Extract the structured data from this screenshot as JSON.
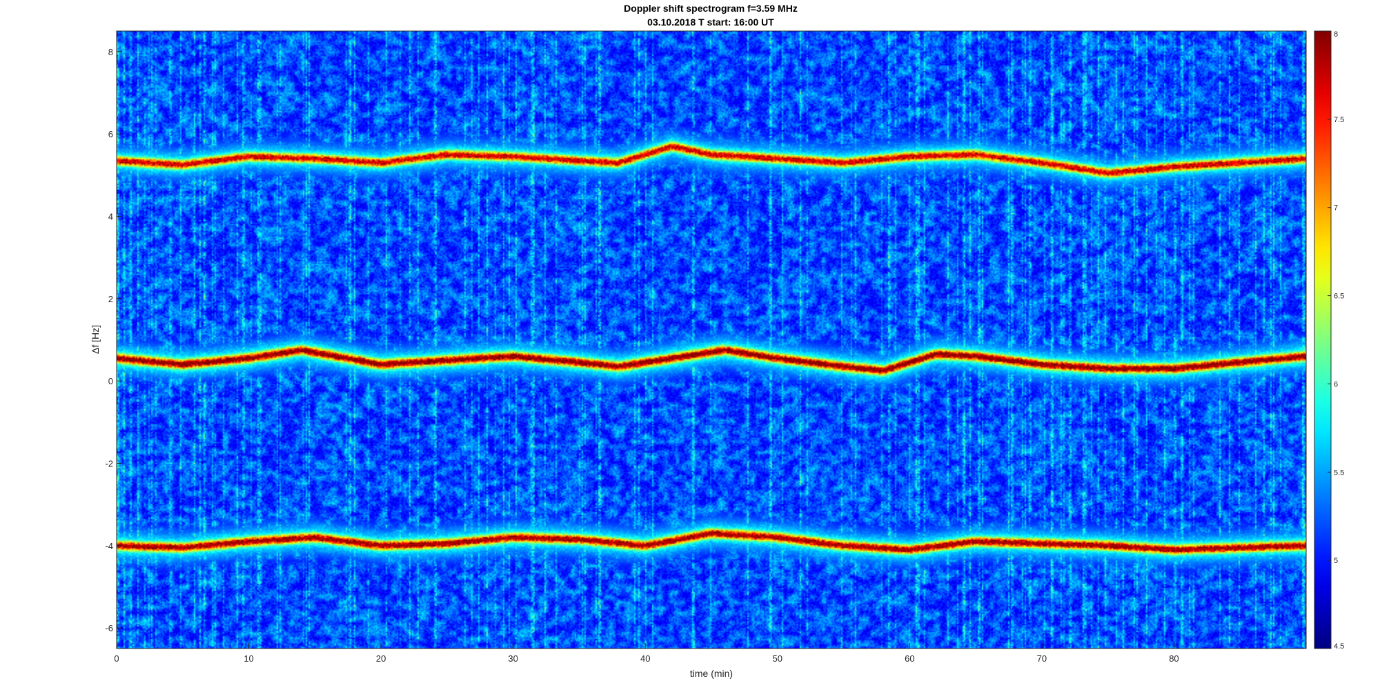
{
  "chart_data": {
    "type": "heatmap",
    "title": "Doppler shift spectrogram f=3.59 MHz",
    "subtitle": "03.10.2018   T start: 16:00 UT",
    "xlabel": "time (min)",
    "ylabel": "Δf [Hz]",
    "xlim": [
      0,
      90
    ],
    "ylim": [
      -6.5,
      8.5
    ],
    "xticks": [
      0,
      10,
      20,
      30,
      40,
      50,
      60,
      70,
      80
    ],
    "xtick_labels": [
      "0",
      "10",
      "20",
      "30",
      "40",
      "50",
      "60",
      "70",
      "80"
    ],
    "yticks": [
      8,
      6,
      4,
      2,
      0,
      -2,
      -4,
      -6
    ],
    "ytick_labels": [
      "8",
      "6",
      "4",
      "2",
      "0",
      "-2",
      "-4",
      "-6"
    ],
    "colorbar": {
      "colormap": "jet",
      "range": [
        4.5,
        8
      ],
      "ticks": [
        8,
        7.5,
        7,
        6.5,
        6,
        5.5,
        5,
        4.5
      ],
      "tick_labels": [
        "8",
        "7.5",
        "7",
        "6.5",
        "6",
        "5.5",
        "5",
        "4.5"
      ]
    },
    "background_level": 4.9,
    "series": [
      {
        "x": [
          0,
          5,
          10,
          15,
          20,
          25,
          30,
          35,
          38,
          42,
          45,
          50,
          55,
          60,
          65,
          70,
          75,
          80,
          85,
          90
        ],
        "y": [
          5.35,
          5.25,
          5.45,
          5.4,
          5.3,
          5.5,
          5.45,
          5.35,
          5.3,
          5.7,
          5.5,
          5.4,
          5.3,
          5.45,
          5.5,
          5.3,
          5.05,
          5.2,
          5.3,
          5.4
        ],
        "peak": 7.6
      },
      {
        "x": [
          0,
          5,
          10,
          14,
          20,
          25,
          30,
          35,
          38,
          42,
          46,
          50,
          55,
          58,
          62,
          65,
          70,
          75,
          80,
          85,
          90
        ],
        "y": [
          0.55,
          0.4,
          0.55,
          0.75,
          0.4,
          0.5,
          0.6,
          0.45,
          0.35,
          0.55,
          0.75,
          0.55,
          0.35,
          0.25,
          0.65,
          0.6,
          0.4,
          0.3,
          0.3,
          0.45,
          0.6
        ],
        "peak": 7.9
      },
      {
        "x": [
          0,
          5,
          10,
          15,
          20,
          25,
          30,
          35,
          40,
          45,
          50,
          55,
          60,
          65,
          70,
          75,
          80,
          85,
          90
        ],
        "y": [
          -4.0,
          -4.05,
          -3.9,
          -3.8,
          -4.0,
          -3.95,
          -3.8,
          -3.85,
          -4.0,
          -3.7,
          -3.8,
          -4.0,
          -4.1,
          -3.9,
          -3.95,
          -4.0,
          -4.1,
          -4.05,
          -4.0
        ],
        "peak": 7.8
      }
    ]
  }
}
